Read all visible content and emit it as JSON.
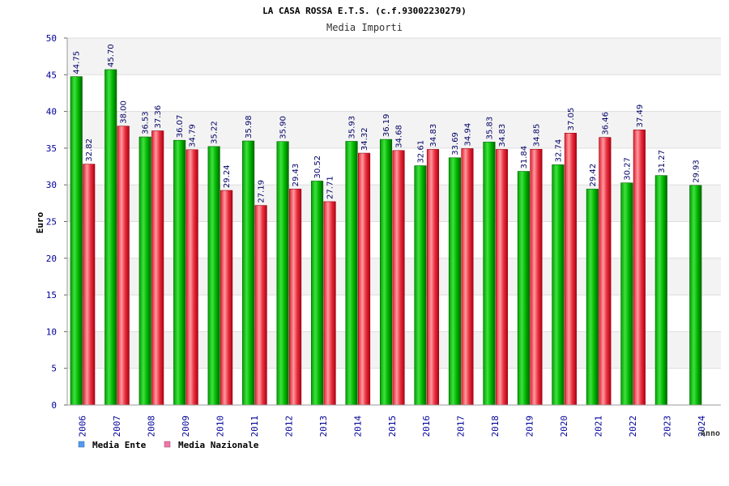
{
  "chart_data": {
    "type": "bar",
    "title": "LA CASA ROSSA E.T.S. (c.f.93002230279)",
    "subtitle": "Media Importi",
    "ylabel": "Euro",
    "xlabel": "Anno",
    "ylim": [
      0,
      50
    ],
    "yticks": [
      0,
      5,
      10,
      15,
      20,
      25,
      30,
      35,
      40,
      45,
      50
    ],
    "categories": [
      "2006",
      "2007",
      "2008",
      "2009",
      "2010",
      "2011",
      "2012",
      "2013",
      "2014",
      "2015",
      "2016",
      "2017",
      "2018",
      "2019",
      "2020",
      "2021",
      "2022",
      "2023",
      "2024"
    ],
    "series": [
      {
        "name": "Media Ente",
        "color": "#00aa00",
        "values": [
          44.75,
          45.7,
          36.53,
          36.07,
          35.22,
          35.98,
          35.9,
          30.52,
          35.93,
          36.19,
          32.61,
          33.69,
          35.83,
          31.84,
          32.74,
          29.42,
          30.27,
          31.27,
          29.93
        ],
        "labels": [
          "44.75",
          "45.70",
          "36.53",
          "36.07",
          "35.22",
          "35.98",
          "35.90",
          "30.52",
          "35.93",
          "36.19",
          "32.61",
          "33.69",
          "35.83",
          "31.84",
          "32.74",
          "29.42",
          "30.27",
          "31.27",
          "29.93"
        ]
      },
      {
        "name": "Media Nazionale",
        "color": "#dd2233",
        "values": [
          32.82,
          38.0,
          37.36,
          34.79,
          29.24,
          27.19,
          29.43,
          27.71,
          34.32,
          34.68,
          34.83,
          34.94,
          34.83,
          34.85,
          37.05,
          36.46,
          37.49,
          null,
          null
        ],
        "labels": [
          "32.82",
          "38.00",
          "37.36",
          "34.79",
          "29.24",
          "27.19",
          "29.43",
          "27.71",
          "34.32",
          "34.68",
          "34.83",
          "34.94",
          "34.83",
          "34.85",
          "37.05",
          "36.46",
          "37.49",
          null,
          null
        ]
      }
    ],
    "legend": {
      "position": "bottom-left",
      "entries": [
        {
          "label": "Media Ente",
          "color": "#5599ee"
        },
        {
          "label": "Media Nazionale",
          "color": "#ee77aa"
        }
      ]
    },
    "grid": true,
    "band_colors": [
      "#f3f3f3",
      "#ffffff"
    ]
  }
}
